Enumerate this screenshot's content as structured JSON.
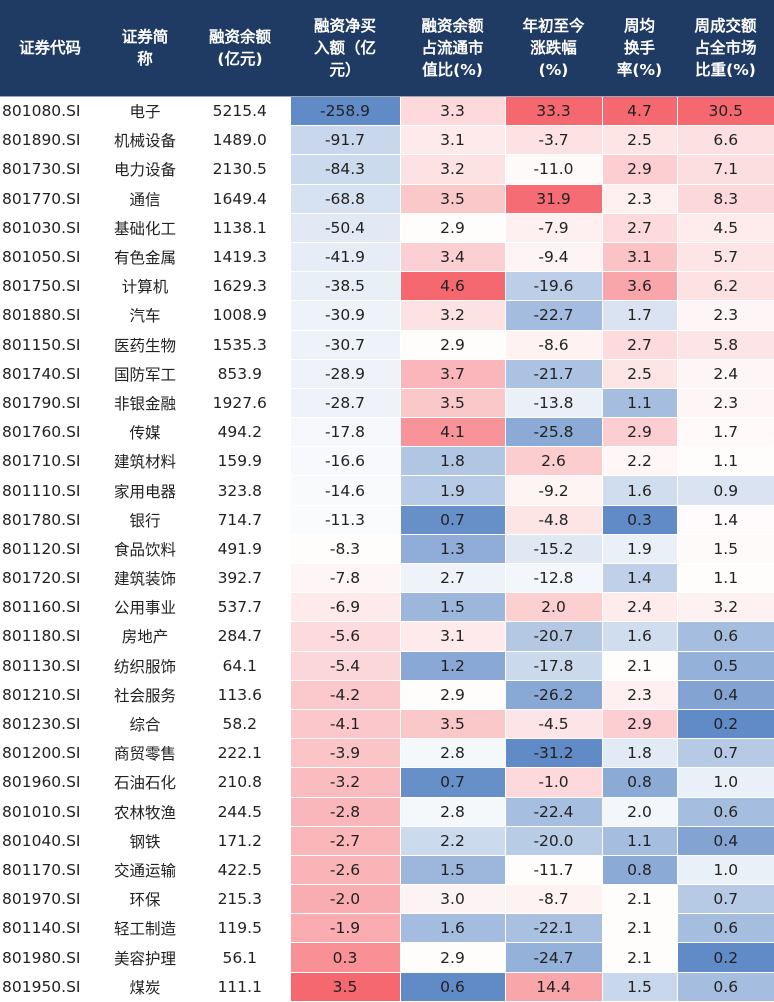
{
  "headers": [
    "证券代码",
    "证券简\n称",
    "融资余额\n(亿元)",
    "融资净买\n入额（亿\n元）",
    "融资余额\n占流通市\n值比(%)",
    "年初至今\n涨跌幅\n(%)",
    "周均\n换手\n率(%)",
    "周成交额\n占全市场\n比重(%)"
  ],
  "rows": [
    [
      "801080.SI",
      "电子",
      "5215.4",
      "-258.9",
      "3.3",
      "33.3",
      "4.7",
      "30.5"
    ],
    [
      "801890.SI",
      "机械设备",
      "1489.0",
      "-91.7",
      "3.1",
      "-3.7",
      "2.5",
      "6.6"
    ],
    [
      "801730.SI",
      "电力设备",
      "2130.5",
      "-84.3",
      "3.2",
      "-11.0",
      "2.9",
      "7.1"
    ],
    [
      "801770.SI",
      "通信",
      "1649.4",
      "-68.8",
      "3.5",
      "31.9",
      "2.3",
      "8.3"
    ],
    [
      "801030.SI",
      "基础化工",
      "1138.1",
      "-50.4",
      "2.9",
      "-7.9",
      "2.7",
      "4.5"
    ],
    [
      "801050.SI",
      "有色金属",
      "1419.3",
      "-41.9",
      "3.4",
      "-9.4",
      "3.1",
      "5.7"
    ],
    [
      "801750.SI",
      "计算机",
      "1629.3",
      "-38.5",
      "4.6",
      "-19.6",
      "3.6",
      "6.2"
    ],
    [
      "801880.SI",
      "汽车",
      "1008.9",
      "-30.9",
      "3.2",
      "-22.7",
      "1.7",
      "2.3"
    ],
    [
      "801150.SI",
      "医药生物",
      "1535.3",
      "-30.7",
      "2.9",
      "-8.6",
      "2.7",
      "5.8"
    ],
    [
      "801740.SI",
      "国防军工",
      "853.9",
      "-28.9",
      "3.7",
      "-21.7",
      "2.5",
      "2.4"
    ],
    [
      "801790.SI",
      "非银金融",
      "1927.6",
      "-28.7",
      "3.5",
      "-13.8",
      "1.1",
      "2.3"
    ],
    [
      "801760.SI",
      "传媒",
      "494.2",
      "-17.8",
      "4.1",
      "-25.8",
      "2.9",
      "1.7"
    ],
    [
      "801710.SI",
      "建筑材料",
      "159.9",
      "-16.6",
      "1.8",
      "2.6",
      "2.2",
      "1.1"
    ],
    [
      "801110.SI",
      "家用电器",
      "323.8",
      "-14.6",
      "1.9",
      "-9.2",
      "1.6",
      "0.9"
    ],
    [
      "801780.SI",
      "银行",
      "714.7",
      "-11.3",
      "0.7",
      "-4.8",
      "0.3",
      "1.4"
    ],
    [
      "801120.SI",
      "食品饮料",
      "491.9",
      "-8.3",
      "1.3",
      "-15.2",
      "1.9",
      "1.5"
    ],
    [
      "801720.SI",
      "建筑装饰",
      "392.7",
      "-7.8",
      "2.7",
      "-12.8",
      "1.4",
      "1.1"
    ],
    [
      "801160.SI",
      "公用事业",
      "537.7",
      "-6.9",
      "1.5",
      "2.0",
      "2.4",
      "3.2"
    ],
    [
      "801180.SI",
      "房地产",
      "284.7",
      "-5.6",
      "3.1",
      "-20.7",
      "1.6",
      "0.6"
    ],
    [
      "801130.SI",
      "纺织服饰",
      "64.1",
      "-5.4",
      "1.2",
      "-17.8",
      "2.1",
      "0.5"
    ],
    [
      "801210.SI",
      "社会服务",
      "113.6",
      "-4.2",
      "2.9",
      "-26.2",
      "2.3",
      "0.4"
    ],
    [
      "801230.SI",
      "综合",
      "58.2",
      "-4.1",
      "3.5",
      "-4.5",
      "2.9",
      "0.2"
    ],
    [
      "801200.SI",
      "商贸零售",
      "222.1",
      "-3.9",
      "2.8",
      "-31.2",
      "1.8",
      "0.7"
    ],
    [
      "801960.SI",
      "石油石化",
      "210.8",
      "-3.2",
      "0.7",
      "-1.0",
      "0.8",
      "1.0"
    ],
    [
      "801010.SI",
      "农林牧渔",
      "244.5",
      "-2.8",
      "2.8",
      "-22.4",
      "2.0",
      "0.6"
    ],
    [
      "801040.SI",
      "钢铁",
      "171.2",
      "-2.7",
      "2.2",
      "-20.0",
      "1.1",
      "0.4"
    ],
    [
      "801170.SI",
      "交通运输",
      "422.5",
      "-2.6",
      "1.5",
      "-11.7",
      "0.8",
      "1.0"
    ],
    [
      "801970.SI",
      "环保",
      "215.3",
      "-2.0",
      "3.0",
      "-8.7",
      "2.1",
      "0.7"
    ],
    [
      "801140.SI",
      "轻工制造",
      "119.5",
      "-1.9",
      "1.6",
      "-22.1",
      "2.1",
      "0.6"
    ],
    [
      "801980.SI",
      "美容护理",
      "56.1",
      "0.3",
      "2.9",
      "-24.7",
      "2.1",
      "0.2"
    ],
    [
      "801950.SI",
      "煤炭",
      "111.1",
      "3.5",
      "0.6",
      "14.4",
      "1.5",
      "0.6"
    ]
  ],
  "colors": {
    "header_bg": "#1f3a63",
    "header_text": "#ffffff",
    "heat_low": "#5b87c5",
    "heat_mid": "#ffffff",
    "heat_high": "#f5636b"
  }
}
